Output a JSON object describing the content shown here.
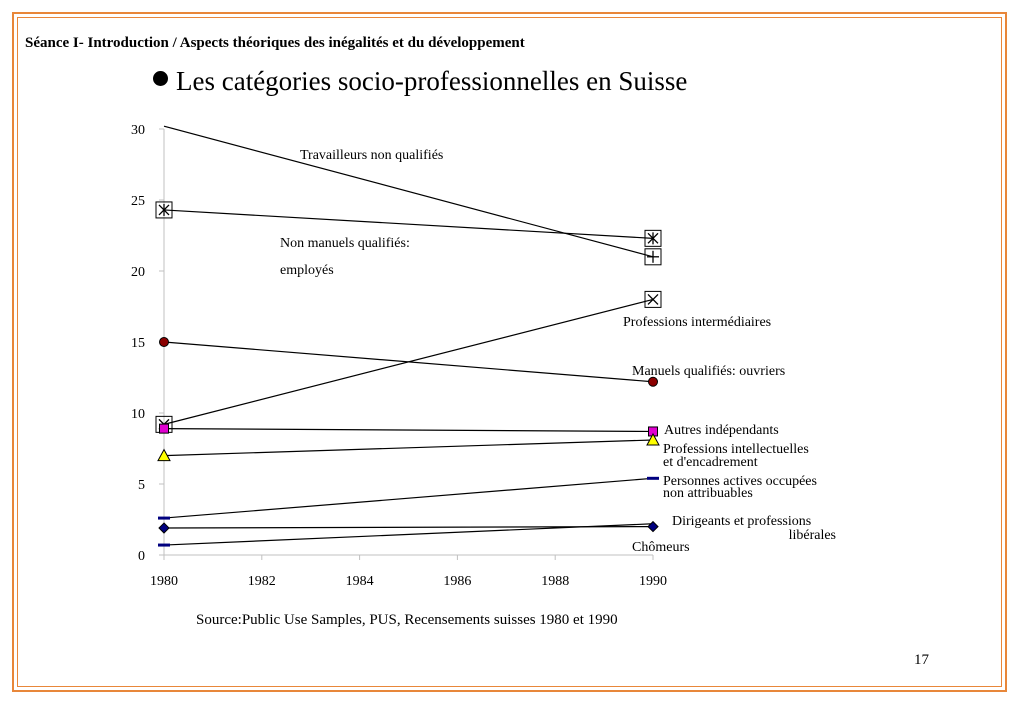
{
  "header": {
    "course_title": "Séance I- Introduction / Aspects théoriques des inégalités et du développement"
  },
  "slide": {
    "title": "Les catégories socio-professionnelles en Suisse",
    "source": "Source:Public Use Samples, PUS, Recensements suisses 1980 et 1990",
    "page_number": "17"
  },
  "colors": {
    "frame": "#e8873a",
    "line": "#000000",
    "ouvriers_marker": "#8b0000",
    "autres_independants_marker": "#e000d0",
    "professions_intellectuelles_marker": "#ffff00",
    "dirigeants_marker": "#00007f"
  },
  "chart_data": {
    "type": "line",
    "x_ticks": [
      "1980",
      "1982",
      "1984",
      "1986",
      "1988",
      "1990"
    ],
    "y_ticks": [
      "0",
      "5",
      "10",
      "15",
      "20",
      "25",
      "30"
    ],
    "xlim": [
      1980,
      1990
    ],
    "ylim": [
      0,
      30
    ],
    "grid": false,
    "series": [
      {
        "name": "Travailleurs non qualifiés",
        "label_lines": [
          "Travailleurs non qualifiés"
        ],
        "x": [
          1980,
          1990
        ],
        "values": [
          30.2,
          21.0
        ],
        "marker": "plus-box",
        "marker_at": [
          1
        ]
      },
      {
        "name": "Non manuels qualifiés: employés",
        "label_lines": [
          "Non manuels qualifiés:",
          "employés"
        ],
        "x": [
          1980,
          1990
        ],
        "values": [
          24.3,
          22.3
        ],
        "marker": "asterisk-box",
        "marker_at": [
          0,
          1
        ]
      },
      {
        "name": "Professions intermédiaires",
        "label_lines": [
          "Professions intermédiaires"
        ],
        "x": [
          1980,
          1990
        ],
        "values": [
          9.2,
          18.0
        ],
        "marker": "x-box",
        "marker_at": [
          0,
          1
        ]
      },
      {
        "name": "Manuels qualifiés: ouvriers",
        "label_lines": [
          "Manuels qualifiés: ouvriers"
        ],
        "x": [
          1980,
          1990
        ],
        "values": [
          15.0,
          12.2
        ],
        "marker": "circle",
        "marker_at": [
          0,
          1
        ],
        "color": "#8b0000"
      },
      {
        "name": "Autres indépendants",
        "label_lines": [
          "Autres indépendants"
        ],
        "x": [
          1980,
          1990
        ],
        "values": [
          8.9,
          8.7
        ],
        "marker": "square",
        "marker_at": [
          0,
          1
        ],
        "color": "#e000d0"
      },
      {
        "name": "Professions intellectuelles et d'encadrement",
        "label_lines": [
          "Professions intellectuelles",
          "et d'encadrement"
        ],
        "x": [
          1980,
          1990
        ],
        "values": [
          7.0,
          8.1
        ],
        "marker": "triangle",
        "marker_at": [
          0,
          1
        ],
        "color": "#ffff00"
      },
      {
        "name": "Personnes actives occupées non attribuables",
        "label_lines": [
          "Personnes actives occupées",
          "non attribuables"
        ],
        "x": [
          1980,
          1990
        ],
        "values": [
          2.6,
          5.4
        ],
        "marker": "dash",
        "marker_at": [
          0,
          1
        ],
        "color": "#00007f"
      },
      {
        "name": "Dirigeants et professions libérales",
        "label_lines": [
          "Dirigeants et professions",
          "libérales"
        ],
        "x": [
          1980,
          1990
        ],
        "values": [
          1.9,
          2.0
        ],
        "marker": "diamond",
        "marker_at": [
          0,
          1
        ],
        "color": "#00007f"
      },
      {
        "name": "Chômeurs",
        "label_lines": [
          "Chômeurs"
        ],
        "x": [
          1980,
          1990
        ],
        "values": [
          0.7,
          2.2
        ],
        "marker": "dash",
        "marker_at": [
          0
        ],
        "color": "#00007f"
      }
    ]
  }
}
